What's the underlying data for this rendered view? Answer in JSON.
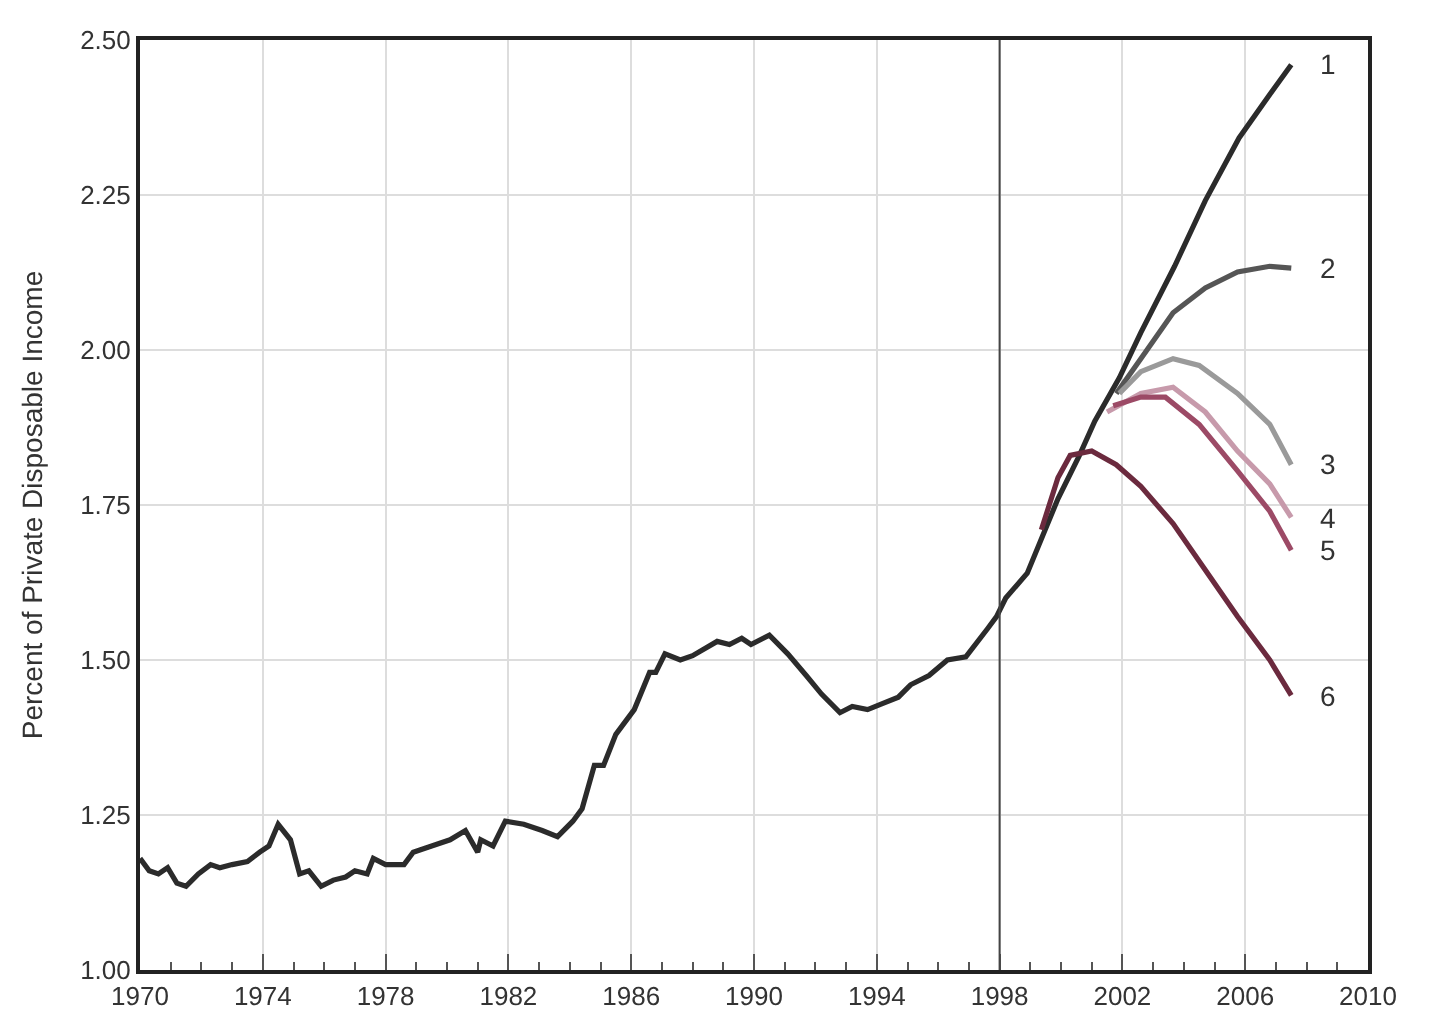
{
  "chart_data": {
    "type": "line",
    "ylabel": "Percent of Private Disposable Income",
    "xlim": [
      1970,
      2010
    ],
    "xticks": [
      1970,
      1974,
      1978,
      1982,
      1986,
      1990,
      1994,
      1998,
      2002,
      2006,
      2010
    ],
    "ylim": [
      1.0,
      2.5
    ],
    "yticks": [
      {
        "value": 1.0,
        "label": "1.00"
      },
      {
        "value": 1.25,
        "label": "1.25"
      },
      {
        "value": 1.5,
        "label": "1.50"
      },
      {
        "value": 1.75,
        "label": "1.75"
      },
      {
        "value": 2.0,
        "label": "2.00"
      },
      {
        "value": 2.25,
        "label": "2.25"
      },
      {
        "value": 2.5,
        "label": "2.50"
      }
    ],
    "grid": true,
    "legend": false,
    "marker": "none",
    "line_style": "solid",
    "ref_lines": [
      {
        "axis": "x",
        "value": 1998,
        "color": "#444444"
      }
    ],
    "series": [
      {
        "name": "1",
        "color": "#2b2b2b",
        "x": [
          1970.0,
          1970.3,
          1970.6,
          1970.9,
          1971.2,
          1971.5,
          1971.9,
          1972.3,
          1972.6,
          1973.0,
          1973.5,
          1973.9,
          1974.2,
          1974.5,
          1974.9,
          1975.2,
          1975.5,
          1975.9,
          1976.3,
          1976.7,
          1977.0,
          1977.4,
          1977.6,
          1978.0,
          1978.6,
          1978.9,
          1979.5,
          1980.1,
          1980.6,
          1981.0,
          1981.1,
          1981.5,
          1981.9,
          1982.5,
          1983.1,
          1983.6,
          1984.1,
          1984.4,
          1984.8,
          1985.1,
          1985.5,
          1986.1,
          1986.6,
          1986.8,
          1987.1,
          1987.6,
          1988.0,
          1988.8,
          1989.2,
          1989.6,
          1989.9,
          1990.5,
          1991.1,
          1991.7,
          1992.2,
          1992.8,
          1993.2,
          1993.7,
          1994.2,
          1994.7,
          1995.1,
          1995.7,
          1996.3,
          1996.9,
          1997.6,
          1997.9,
          1998.2,
          1998.9,
          1999.4,
          1999.9,
          2000.6,
          2001.1,
          2001.9,
          2002.6,
          2003.7,
          2004.7,
          2005.8,
          2006.8,
          2007.5
        ],
        "values": [
          1.18,
          1.16,
          1.155,
          1.165,
          1.14,
          1.135,
          1.155,
          1.17,
          1.165,
          1.17,
          1.175,
          1.19,
          1.2,
          1.235,
          1.21,
          1.155,
          1.16,
          1.135,
          1.145,
          1.15,
          1.16,
          1.155,
          1.18,
          1.17,
          1.17,
          1.19,
          1.2,
          1.21,
          1.225,
          1.19,
          1.21,
          1.2,
          1.24,
          1.235,
          1.225,
          1.215,
          1.24,
          1.26,
          1.33,
          1.33,
          1.38,
          1.42,
          1.48,
          1.48,
          1.51,
          1.5,
          1.507,
          1.53,
          1.525,
          1.535,
          1.525,
          1.54,
          1.51,
          1.475,
          1.445,
          1.415,
          1.425,
          1.42,
          1.43,
          1.44,
          1.46,
          1.475,
          1.5,
          1.505,
          1.55,
          1.57,
          1.6,
          1.64,
          1.7,
          1.76,
          1.83,
          1.885,
          1.955,
          2.028,
          2.135,
          2.241,
          2.342,
          2.412,
          2.46
        ]
      },
      {
        "name": "2",
        "color": "#555555",
        "x": [
          2001.8,
          2002.6,
          2003.65,
          2004.7,
          2005.75,
          2006.8,
          2007.5
        ],
        "values": [
          1.93,
          1.986,
          2.06,
          2.1,
          2.126,
          2.135,
          2.132
        ]
      },
      {
        "name": "3",
        "color": "#9a9a9a",
        "x": [
          2001.9,
          2002.6,
          2003.65,
          2004.5,
          2005.75,
          2006.8,
          2007.5
        ],
        "values": [
          1.93,
          1.965,
          1.986,
          1.975,
          1.93,
          1.88,
          1.815
        ]
      },
      {
        "name": "4",
        "color": "#c79aab",
        "x": [
          2001.5,
          2002.6,
          2003.65,
          2004.7,
          2005.75,
          2006.8,
          2007.5
        ],
        "values": [
          1.9,
          1.93,
          1.94,
          1.9,
          1.837,
          1.784,
          1.73
        ]
      },
      {
        "name": "5",
        "color": "#9c4a66",
        "x": [
          2001.7,
          2002.6,
          2003.4,
          2004.5,
          2005.75,
          2006.8,
          2007.5
        ],
        "values": [
          1.91,
          1.924,
          1.924,
          1.88,
          1.805,
          1.74,
          1.677
        ]
      },
      {
        "name": "6",
        "color": "#6b2a3e",
        "x": [
          1999.36,
          1999.9,
          2000.3,
          2001.0,
          2001.8,
          2002.6,
          2003.65,
          2004.7,
          2005.75,
          2006.8,
          2007.5
        ],
        "values": [
          1.71,
          1.794,
          1.83,
          1.837,
          1.815,
          1.78,
          1.72,
          1.645,
          1.57,
          1.5,
          1.443
        ]
      }
    ]
  }
}
